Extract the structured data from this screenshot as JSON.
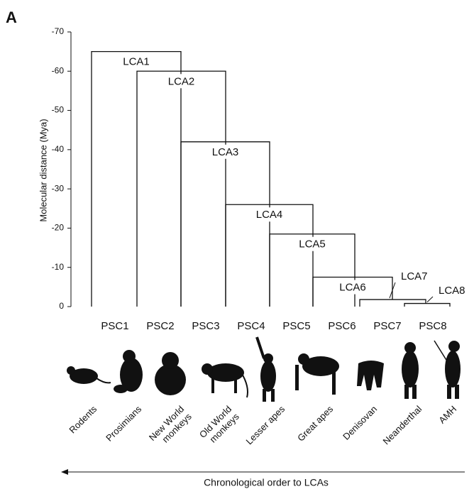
{
  "chart_data": {
    "type": "dendrogram",
    "panel": "A",
    "ylabel": "Molecular distance (Mya)",
    "ylim": [
      0,
      -70
    ],
    "yticks": [
      -70,
      -60,
      -50,
      -40,
      -30,
      -20,
      -10,
      0
    ],
    "nodes": [
      {
        "label": "LCA1",
        "value": -65
      },
      {
        "label": "LCA2",
        "value": -60
      },
      {
        "label": "LCA3",
        "value": -42
      },
      {
        "label": "LCA4",
        "value": -26
      },
      {
        "label": "LCA5",
        "value": -18.5
      },
      {
        "label": "LCA6",
        "value": -7.5
      },
      {
        "label": "LCA7",
        "value": -1.8
      },
      {
        "label": "LCA8",
        "value": -0.8
      }
    ],
    "leaves": [
      "PSC1",
      "PSC2",
      "PSC3",
      "PSC4",
      "PSC5",
      "PSC6",
      "PSC7",
      "PSC8"
    ],
    "groups": [
      [
        "Rodents"
      ],
      [
        "Prosimians"
      ],
      [
        "New World",
        "monkeys"
      ],
      [
        "Old World",
        "monkeys"
      ],
      [
        "Lesser apes"
      ],
      [
        "Great apes"
      ],
      [
        "Denisovan"
      ],
      [
        "Neanderthal"
      ],
      [
        "AMH"
      ]
    ],
    "xlabel": "Chronological order to LCAs"
  }
}
